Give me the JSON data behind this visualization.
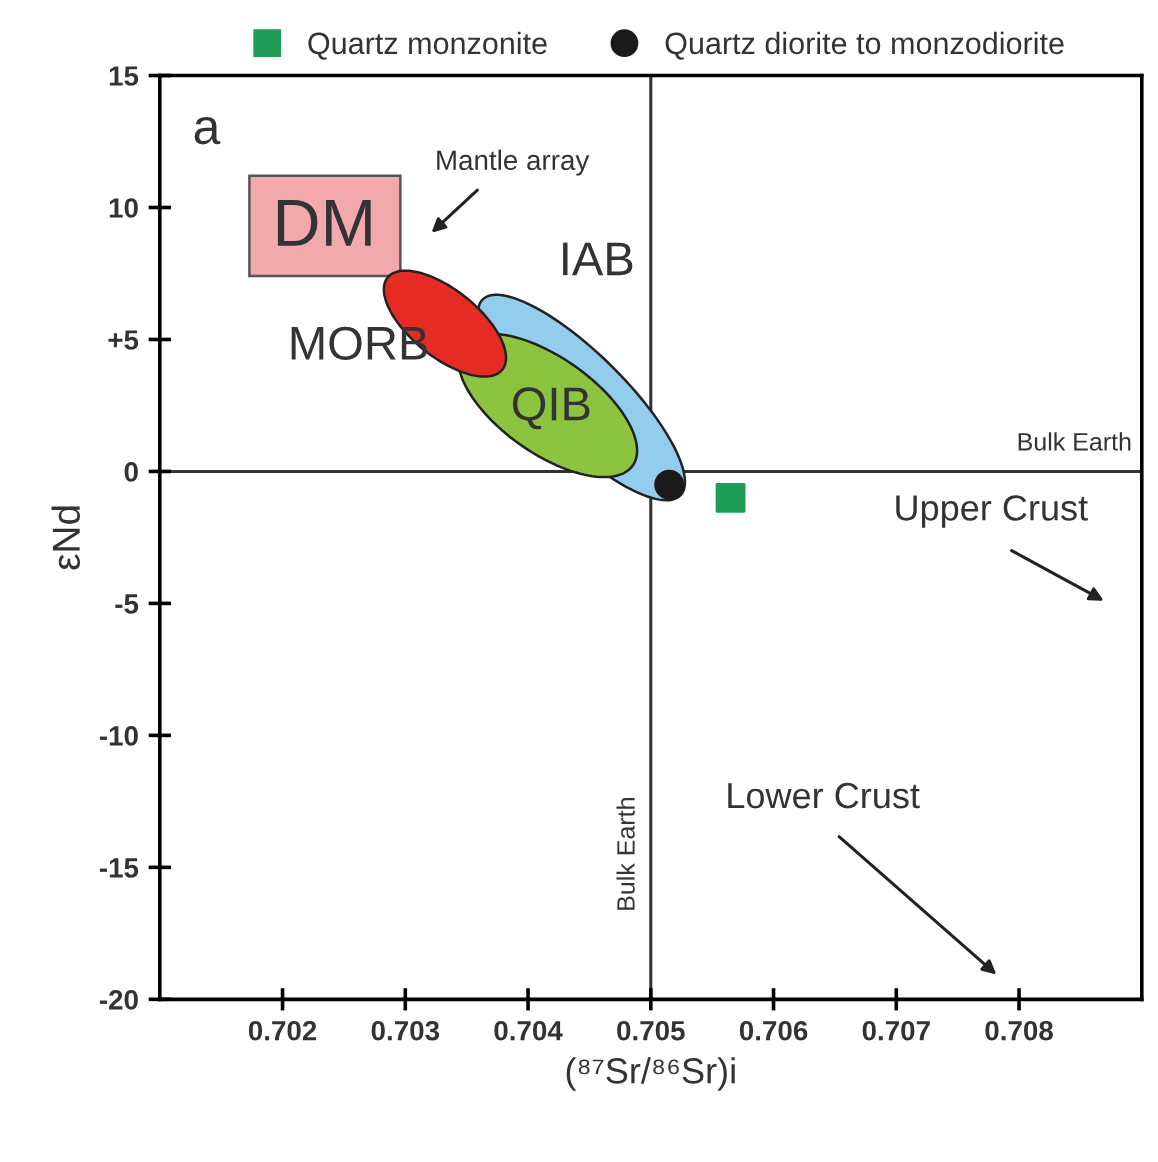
{
  "chart_data": {
    "type": "scatter",
    "xlabel": "(⁸⁷Sr/⁸⁶Sr)i",
    "ylabel": "εNd",
    "series": [
      {
        "name": "Quartz monzonite",
        "color": "#1f9e5a",
        "marker": "square",
        "x": [
          0.70565
        ],
        "values": [
          -1.0
        ]
      },
      {
        "name": "Quartz diorite to monzodiorite",
        "color": "#1a1a1a",
        "marker": "circle",
        "x": [
          0.70515
        ],
        "values": [
          -0.5
        ]
      }
    ],
    "xlim": [
      0.701,
      0.709
    ],
    "xticks": [
      0.702,
      0.703,
      0.704,
      0.705,
      0.706,
      0.707,
      0.708
    ],
    "ylim": [
      -20,
      15
    ],
    "yticks": [
      -20,
      -15,
      -10,
      -5,
      0,
      {
        "value": 5,
        "label": "+5"
      },
      10,
      15
    ],
    "ref_lines": [
      {
        "axis": "y",
        "value": 0,
        "label": "Bulk Earth",
        "color": "#333333"
      },
      {
        "axis": "x",
        "value": 0.705,
        "label": "Bulk Earth",
        "color": "#333333"
      }
    ],
    "annotations": [
      "a",
      "Mantle array",
      "DM",
      "MORB",
      "QIB",
      "IAB",
      "Upper Crust",
      "Lower Crust"
    ],
    "grid": false,
    "legend": "top"
  }
}
